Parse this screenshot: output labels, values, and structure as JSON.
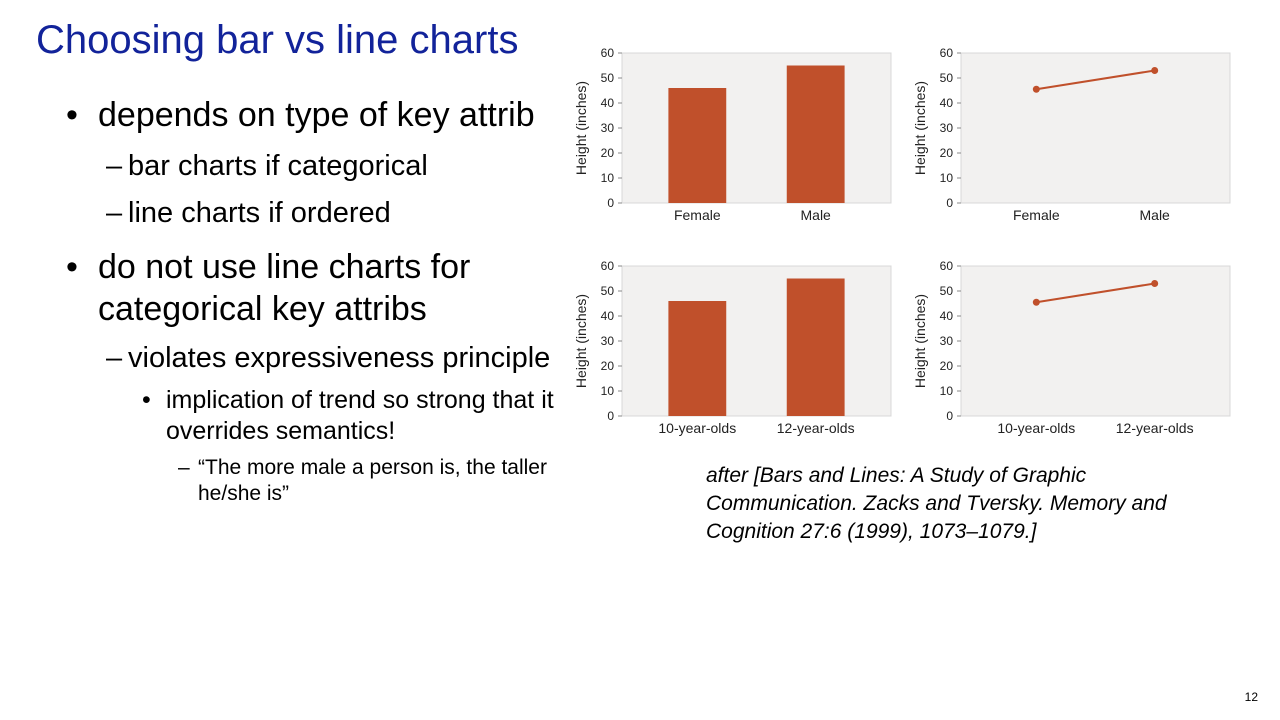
{
  "slide": {
    "title": "Choosing bar vs line charts",
    "bullets": {
      "b1": "depends on type of key attrib",
      "b1_sub1": "bar charts if categorical",
      "b1_sub2": "line charts if ordered",
      "b2": "do not use line charts for categorical key attribs",
      "b2_sub1": "violates expressiveness principle",
      "b2_sub1_sub1": "implication of trend so strong that it overrides semantics!",
      "b2_sub1_sub1_sub1": "“The more male a person is, the taller he/she is”"
    },
    "citation": "after [Bars and Lines: A Study of Graphic Communication. Zacks and Tversky. Memory and Cognition 27:6 (1999), 1073–1079.]",
    "page_number": "12",
    "colors": {
      "title": "#12239a",
      "series": "#c0502b",
      "plot_bg": "#f2f1f0"
    }
  },
  "chart_data": [
    {
      "type": "bar",
      "categories": [
        "Female",
        "Male"
      ],
      "values": [
        46,
        55
      ],
      "ylabel": "Height (inches)",
      "ylim": [
        0,
        60
      ],
      "yticks": [
        0,
        10,
        20,
        30,
        40,
        50,
        60
      ]
    },
    {
      "type": "line",
      "categories": [
        "Female",
        "Male"
      ],
      "values": [
        45.5,
        53
      ],
      "ylabel": "Height (inches)",
      "ylim": [
        0,
        60
      ],
      "yticks": [
        0,
        10,
        20,
        30,
        40,
        50,
        60
      ]
    },
    {
      "type": "bar",
      "categories": [
        "10-year-olds",
        "12-year-olds"
      ],
      "values": [
        46,
        55
      ],
      "ylabel": "Height (inches)",
      "ylim": [
        0,
        60
      ],
      "yticks": [
        0,
        10,
        20,
        30,
        40,
        50,
        60
      ]
    },
    {
      "type": "line",
      "categories": [
        "10-year-olds",
        "12-year-olds"
      ],
      "values": [
        45.5,
        53
      ],
      "ylabel": "Height (inches)",
      "ylim": [
        0,
        60
      ],
      "yticks": [
        0,
        10,
        20,
        30,
        40,
        50,
        60
      ]
    }
  ]
}
